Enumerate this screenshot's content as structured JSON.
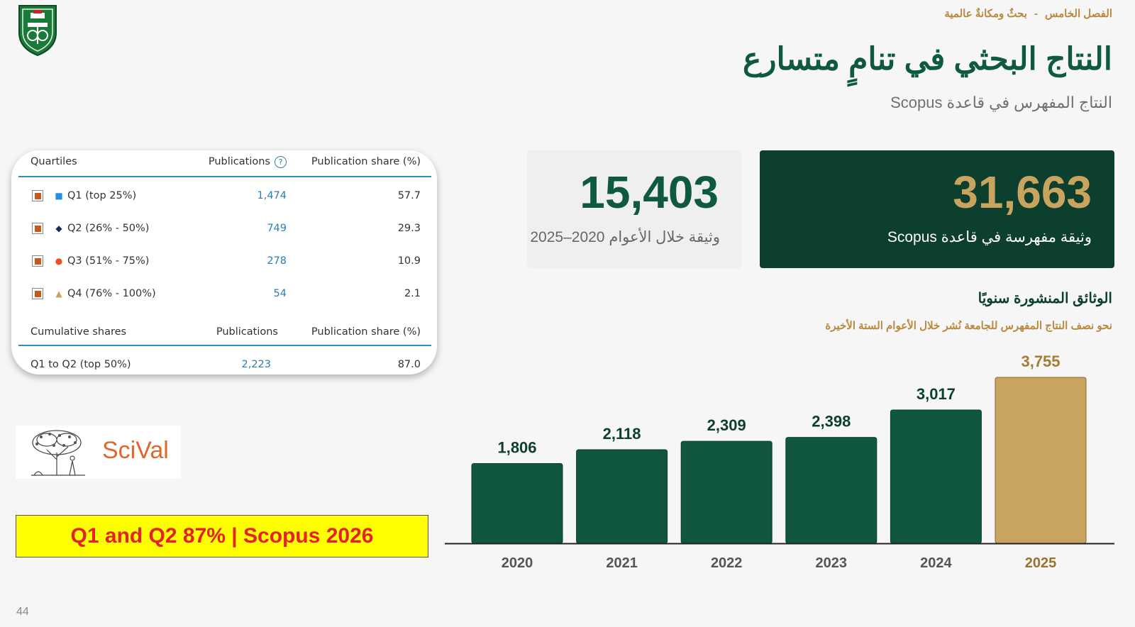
{
  "header": {
    "section": "الفصل الخامس",
    "section_sep": "-",
    "section_topic": "بحثٌ ومكانةٌ عالمية",
    "title": "النتاج البحثي في تنامٍ متسارع",
    "subtitle": "النتاج المفهرس في قاعدة Scopus"
  },
  "stats": [
    {
      "value": "31,663",
      "label": "وثيقة مفهرسة في قاعدة Scopus"
    },
    {
      "value": "15,403",
      "label": "وثيقة خلال الأعوام 2020–2025"
    }
  ],
  "chart_data": {
    "type": "bar",
    "title": "الوثائق المنشورة سنويًا",
    "subtitle": "نحو نصف النتاج المفهرس للجامعة نُشر خلال الأعوام الستة الأخيرة",
    "categories": [
      "2020",
      "2021",
      "2022",
      "2023",
      "2024",
      "2025"
    ],
    "values": [
      1806,
      2118,
      2309,
      2398,
      3017,
      3755
    ],
    "value_labels": [
      "1,806",
      "2,118",
      "2,309",
      "2,398",
      "3,017",
      "3,755"
    ],
    "highlight_index": 5,
    "colors": {
      "bar": "#11573d",
      "highlight": "#c9a45e",
      "value_label": "#0d3f2f",
      "highlight_label": "#a57c33",
      "tick": "#555555",
      "highlight_tick": "#9a7230"
    },
    "ylim": [
      0,
      3755
    ],
    "grid": false,
    "legend": "none"
  },
  "quartiles_table": {
    "headers": {
      "quartile": "Quartiles",
      "publications": "Publications",
      "share": "Publication share (%)"
    },
    "rows": [
      {
        "label": "Q1 (top 25%)",
        "publications": "1,474",
        "share": "57.7",
        "marker": "square",
        "marker_color": "#1e90e8"
      },
      {
        "label": "Q2 (26% - 50%)",
        "publications": "749",
        "share": "29.3",
        "marker": "diamond",
        "marker_color": "#1a2b5a"
      },
      {
        "label": "Q3 (51% - 75%)",
        "publications": "278",
        "share": "10.9",
        "marker": "circle",
        "marker_color": "#f04e1c"
      },
      {
        "label": "Q4 (76% - 100%)",
        "publications": "54",
        "share": "2.1",
        "marker": "triangle",
        "marker_color": "#c9a45e"
      }
    ],
    "cumulative_headers": {
      "label": "Cumulative shares",
      "publications": "Publications",
      "share": "Publication share (%)"
    },
    "cumulative_rows": [
      {
        "label": "Q1 to Q2 (top 50%)",
        "publications": "2,223",
        "share": "87.0"
      }
    ]
  },
  "scival": {
    "logo_text": "SciVal",
    "icon": "elsevier-tree-icon"
  },
  "banner": {
    "text": "Q1 and Q2 87% | Scopus 2026"
  },
  "page_number": "44",
  "logo": {
    "icon": "university-crest-icon"
  }
}
